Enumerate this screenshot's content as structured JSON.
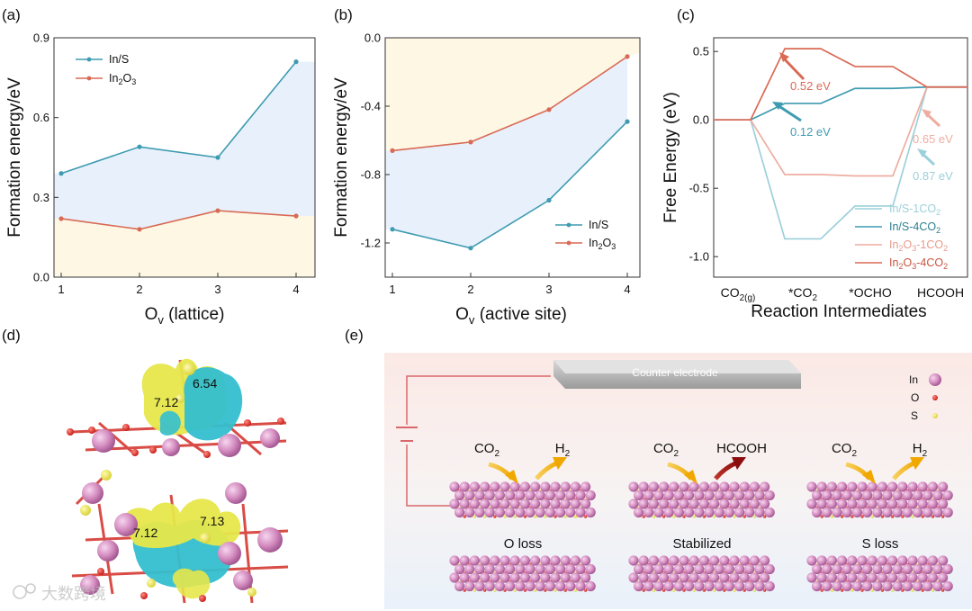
{
  "panel_labels": {
    "a": "(a)",
    "b": "(b)",
    "c": "(c)",
    "d": "(d)",
    "e": "(e)"
  },
  "colors": {
    "in_s": "#3f9bb1",
    "in2o3": "#d96a55",
    "in_s_light": "#9cd0da",
    "in2o3_light": "#eeada1",
    "fill_blue": "#e8f1fb",
    "fill_yellow": "#fdf7e4"
  },
  "panel_a": {
    "ylabel": "Formation energy/eV",
    "xlabel_main": "O",
    "xlabel_sub": "v",
    "xlabel_tail": " (lattice)",
    "legend": [
      {
        "main": "In/S",
        "sub": "",
        "tail": ""
      },
      {
        "main": "In",
        "sub": "2",
        "tail": "O",
        "sub2": "3"
      }
    ]
  },
  "panel_b": {
    "ylabel": "Formation energy/eV",
    "xlabel_main": "O",
    "xlabel_sub": "v",
    "xlabel_tail": " (active site)",
    "legend": [
      {
        "main": "In/S",
        "sub": "",
        "tail": ""
      },
      {
        "main": "In",
        "sub": "2",
        "tail": "O",
        "sub2": "3"
      }
    ]
  },
  "panel_c": {
    "ylabel": "Free Energy (eV)",
    "xlabel": "Reaction Intermediates",
    "legend": [
      {
        "main": "In/S-1CO",
        "sub": "2"
      },
      {
        "main": "In/S-4CO",
        "sub": "2"
      },
      {
        "main": "In",
        "sub": "2",
        "tail": "O",
        "sub2": "3",
        "tail2": "-1CO",
        "sub3": "2"
      },
      {
        "main": "In",
        "sub": "2",
        "tail": "O",
        "sub2": "3",
        "tail2": "-4CO",
        "sub3": "2"
      }
    ]
  },
  "chart_data": [
    {
      "type": "line",
      "panel": "a",
      "x": [
        1,
        2,
        3,
        4
      ],
      "series": [
        {
          "name": "In/S",
          "values": [
            0.39,
            0.49,
            0.45,
            0.81
          ]
        },
        {
          "name": "In2O3",
          "values": [
            0.22,
            0.18,
            0.25,
            0.23
          ]
        }
      ],
      "ylim": [
        0.0,
        0.9
      ],
      "yticks": [
        0.0,
        0.3,
        0.6,
        0.9
      ],
      "ytick_labels": [
        "0.0",
        "0.3",
        "0.6",
        "0.9"
      ],
      "xticks": [
        1,
        2,
        3,
        4
      ],
      "xtick_labels": [
        "1",
        "2",
        "3",
        "4"
      ],
      "legend_position": "top-left"
    },
    {
      "type": "line",
      "panel": "b",
      "x": [
        1,
        2,
        3,
        4
      ],
      "series": [
        {
          "name": "In/S",
          "values": [
            -1.12,
            -1.23,
            -0.95,
            -0.49
          ]
        },
        {
          "name": "In2O3",
          "values": [
            -0.66,
            -0.61,
            -0.42,
            -0.11
          ]
        }
      ],
      "ylim": [
        -1.4,
        0.0
      ],
      "yticks": [
        -1.2,
        -0.8,
        -0.4,
        0.0
      ],
      "ytick_labels": [
        "-1.2",
        "-0.8",
        "-0.4",
        "0.0"
      ],
      "xticks": [
        1,
        2,
        3,
        4
      ],
      "xtick_labels": [
        "1",
        "2",
        "3",
        "4"
      ],
      "legend_position": "bottom-right"
    },
    {
      "type": "line",
      "panel": "c",
      "categories": [
        "CO2(g)",
        "*CO2",
        "*OCHO",
        "HCOOH"
      ],
      "category_labels": [
        {
          "main": "CO",
          "sub": "2(g)"
        },
        {
          "main": "*CO",
          "sub": "2"
        },
        {
          "main": "*OCHO",
          "sub": ""
        },
        {
          "main": "HCOOH",
          "sub": ""
        }
      ],
      "series": [
        {
          "name": "In/S-1CO2",
          "values": [
            0.0,
            -0.87,
            -0.63,
            0.24
          ]
        },
        {
          "name": "In/S-4CO2",
          "values": [
            0.0,
            0.12,
            0.23,
            0.24
          ]
        },
        {
          "name": "In2O3-1CO2",
          "values": [
            0.0,
            -0.4,
            -0.41,
            0.24
          ]
        },
        {
          "name": "In2O3-4CO2",
          "values": [
            0.0,
            0.52,
            0.39,
            0.24
          ]
        }
      ],
      "ylim": [
        -1.15,
        0.6
      ],
      "yticks": [
        -1.0,
        -0.5,
        0.0,
        0.5
      ],
      "ytick_labels": [
        "-1.0",
        "-0.5",
        "0.0",
        "0.5"
      ],
      "annotations": [
        {
          "text": "0.52 eV",
          "series": "In2O3-4CO2"
        },
        {
          "text": "0.12 eV",
          "series": "In/S-4CO2"
        },
        {
          "text": "0.65 eV",
          "series": "In2O3-1CO2"
        },
        {
          "text": "0.87 eV",
          "series": "In/S-1CO2"
        }
      ],
      "legend_position": "bottom-right"
    }
  ],
  "panel_d": {
    "upper_labels": [
      "6.54",
      "7.12"
    ],
    "lower_labels": [
      "7.12",
      "7.13"
    ]
  },
  "panel_e": {
    "counter_electrode": "Counter electrode",
    "legend": [
      {
        "label": "In",
        "color": "#d88ac0"
      },
      {
        "label": "O",
        "color": "#e0403a"
      },
      {
        "label": "S",
        "color": "#c8d27a"
      }
    ],
    "cases": [
      {
        "input": {
          "main": "CO",
          "sub": "2"
        },
        "output": {
          "main": "H",
          "sub": "2"
        },
        "caption": "O loss"
      },
      {
        "input": {
          "main": "CO",
          "sub": "2"
        },
        "output": {
          "main": "HCOOH",
          "sub": ""
        },
        "caption": "Stabilized"
      },
      {
        "input": {
          "main": "CO",
          "sub": "2"
        },
        "output": {
          "main": "H",
          "sub": "2"
        },
        "caption": "S loss"
      }
    ]
  },
  "watermark": "大数跨境"
}
